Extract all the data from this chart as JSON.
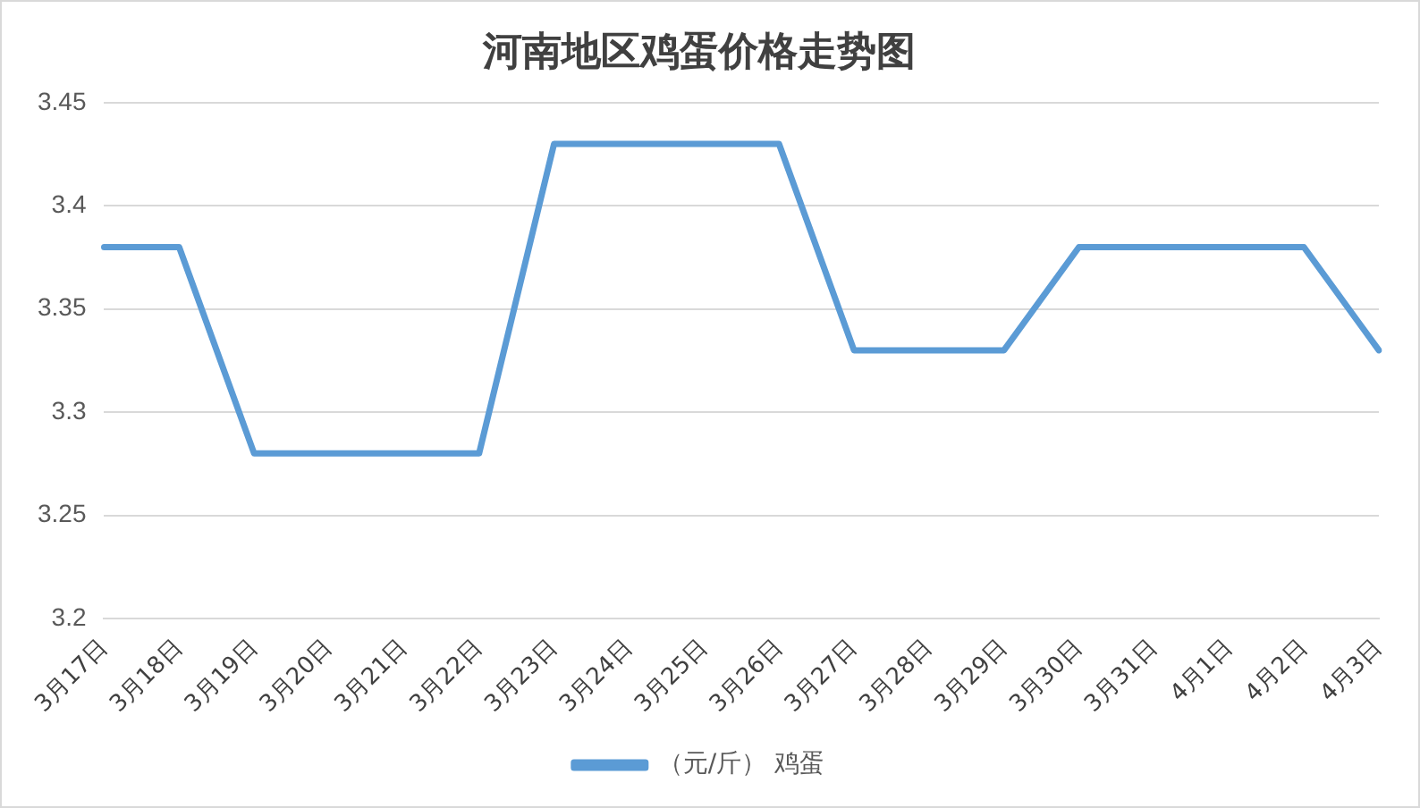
{
  "chart_data": {
    "type": "line",
    "title": "河南地区鸡蛋价格走势图",
    "categories": [
      "3月17日",
      "3月18日",
      "3月19日",
      "3月20日",
      "3月21日",
      "3月22日",
      "3月23日",
      "3月24日",
      "3月25日",
      "3月26日",
      "3月27日",
      "3月28日",
      "3月29日",
      "3月30日",
      "3月31日",
      "4月1日",
      "4月2日",
      "4月3日"
    ],
    "series": [
      {
        "name": "（元/斤） 鸡蛋",
        "color": "#5b9bd5",
        "values": [
          3.38,
          3.38,
          3.28,
          3.28,
          3.28,
          3.28,
          3.43,
          3.43,
          3.43,
          3.43,
          3.33,
          3.33,
          3.33,
          3.38,
          3.38,
          3.38,
          3.38,
          3.33
        ]
      }
    ],
    "ylim": [
      3.2,
      3.45
    ],
    "yticks": [
      3.2,
      3.25,
      3.3,
      3.35,
      3.4,
      3.45
    ],
    "grid": "y",
    "legend": "bottom",
    "marker": "none",
    "line_style": "solid"
  }
}
